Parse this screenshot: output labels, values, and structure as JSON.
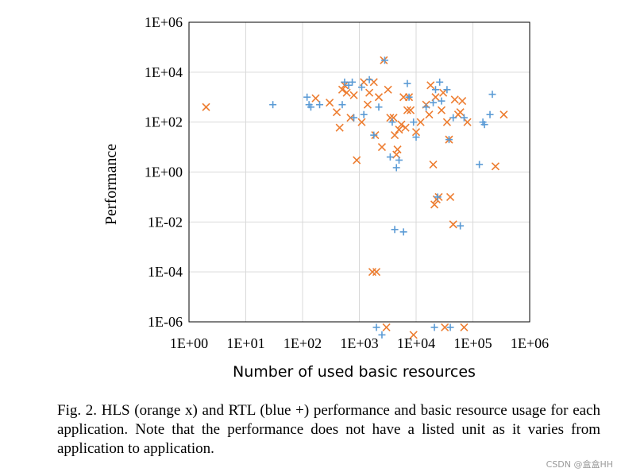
{
  "chart_data": {
    "type": "scatter",
    "xlabel": "Number of used basic resources",
    "ylabel": "Performance",
    "xscale": "log",
    "yscale": "log",
    "xlim": [
      1,
      1000000
    ],
    "ylim": [
      1e-06,
      1000000
    ],
    "grid": true,
    "x_tick_labels": [
      "1E+00",
      "1E+01",
      "1E+02",
      "1E+03",
      "1E+04",
      "1E+05",
      "1E+06"
    ],
    "y_tick_labels": [
      "1E-06",
      "1E-04",
      "1E-02",
      "1E+00",
      "1E+02",
      "1E+04",
      "1E+06"
    ],
    "x_ticks": [
      1,
      10,
      100,
      1000,
      10000,
      100000,
      1000000
    ],
    "y_ticks": [
      1e-06,
      0.0001,
      0.01,
      1,
      100,
      10000,
      1000000
    ],
    "series": [
      {
        "marker": "x",
        "color": "#ED7D31",
        "points": [
          [
            2,
            400
          ],
          [
            170,
            900
          ],
          [
            300,
            600
          ],
          [
            400,
            250
          ],
          [
            450,
            60
          ],
          [
            500,
            2000
          ],
          [
            550,
            3000
          ],
          [
            600,
            1500
          ],
          [
            700,
            150
          ],
          [
            800,
            1200
          ],
          [
            900,
            3
          ],
          [
            1100,
            100
          ],
          [
            1200,
            4000
          ],
          [
            1400,
            500
          ],
          [
            1500,
            1500
          ],
          [
            1700,
            0.0001
          ],
          [
            1800,
            4000
          ],
          [
            1900,
            30
          ],
          [
            2000,
            0.0001
          ],
          [
            2200,
            1000
          ],
          [
            2500,
            10
          ],
          [
            2700,
            30000
          ],
          [
            3000,
            6e-07
          ],
          [
            3200,
            2000
          ],
          [
            3500,
            150
          ],
          [
            4000,
            150
          ],
          [
            4200,
            30
          ],
          [
            4500,
            5
          ],
          [
            4700,
            8
          ],
          [
            5000,
            50
          ],
          [
            5500,
            80
          ],
          [
            6000,
            1000
          ],
          [
            6500,
            60
          ],
          [
            7000,
            300
          ],
          [
            7500,
            1000
          ],
          [
            8000,
            300
          ],
          [
            9000,
            3e-07
          ],
          [
            10000,
            40
          ],
          [
            12000,
            100
          ],
          [
            15000,
            500
          ],
          [
            17000,
            200
          ],
          [
            18000,
            3000
          ],
          [
            20000,
            2
          ],
          [
            21000,
            0.05
          ],
          [
            22000,
            1000
          ],
          [
            23000,
            0.08
          ],
          [
            25000,
            0.1
          ],
          [
            28000,
            300
          ],
          [
            30000,
            1500
          ],
          [
            32000,
            6e-07
          ],
          [
            35000,
            100
          ],
          [
            38000,
            20
          ],
          [
            40000,
            0.1
          ],
          [
            45000,
            0.008
          ],
          [
            48000,
            800
          ],
          [
            55000,
            200
          ],
          [
            60000,
            250
          ],
          [
            65000,
            700
          ],
          [
            70000,
            6e-07
          ],
          [
            80000,
            100
          ],
          [
            250000,
            1.7
          ],
          [
            350000,
            200
          ]
        ]
      },
      {
        "marker": "+",
        "color": "#5B9BD5",
        "points": [
          [
            30,
            500
          ],
          [
            120,
            1000
          ],
          [
            130,
            500
          ],
          [
            140,
            400
          ],
          [
            200,
            500
          ],
          [
            500,
            500
          ],
          [
            550,
            4000
          ],
          [
            650,
            3000
          ],
          [
            750,
            4000
          ],
          [
            800,
            150
          ],
          [
            1100,
            2500
          ],
          [
            1200,
            200
          ],
          [
            1500,
            5000
          ],
          [
            1800,
            30
          ],
          [
            2000,
            6e-07
          ],
          [
            2200,
            400
          ],
          [
            2500,
            3e-07
          ],
          [
            2800,
            30000
          ],
          [
            3500,
            4
          ],
          [
            3800,
            100
          ],
          [
            4200,
            0.005
          ],
          [
            4500,
            1.5
          ],
          [
            5000,
            3
          ],
          [
            6000,
            0.004
          ],
          [
            7000,
            3500
          ],
          [
            7500,
            1000
          ],
          [
            9000,
            100
          ],
          [
            10000,
            25
          ],
          [
            15000,
            400
          ],
          [
            20000,
            600
          ],
          [
            21000,
            6e-07
          ],
          [
            22000,
            2000
          ],
          [
            24000,
            0.1
          ],
          [
            26000,
            4000
          ],
          [
            28000,
            700
          ],
          [
            35000,
            2000
          ],
          [
            38000,
            20
          ],
          [
            40000,
            6e-07
          ],
          [
            45000,
            150
          ],
          [
            60000,
            0.007
          ],
          [
            70000,
            150
          ],
          [
            130000,
            2
          ],
          [
            150000,
            100
          ],
          [
            160000,
            80
          ],
          [
            200000,
            200
          ],
          [
            220000,
            1300
          ]
        ]
      }
    ]
  },
  "caption": {
    "text": "Fig. 2.    HLS (orange x) and RTL (blue +) performance and basic resource usage for each application. Note that the performance does not have a listed unit as it varies from application to application."
  },
  "watermark": "CSDN @盒盒HH"
}
